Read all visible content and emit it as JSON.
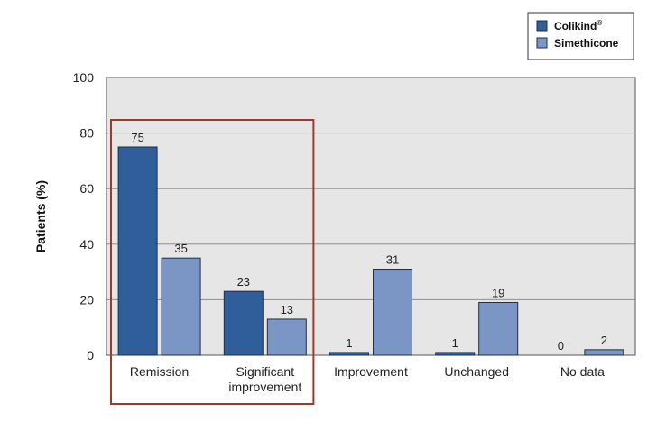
{
  "chart_data": {
    "type": "bar",
    "title": "",
    "xlabel": "",
    "ylabel": "Patients (%)",
    "ylim": [
      0,
      100
    ],
    "yticks": [
      0,
      20,
      40,
      60,
      80,
      100
    ],
    "grid": true,
    "legend_position": "top-right",
    "categories": [
      [
        "Remission"
      ],
      [
        "Significant",
        "improvement"
      ],
      [
        "Improvement"
      ],
      [
        "Unchanged"
      ],
      [
        "No data"
      ]
    ],
    "series": [
      {
        "name": "Colikind",
        "superscript": "®",
        "color": "#2f5e9a",
        "values": [
          75,
          23,
          1,
          1,
          0
        ]
      },
      {
        "name": "Simethicone",
        "color": "#7b96c4",
        "values": [
          35,
          13,
          31,
          19,
          2
        ]
      }
    ],
    "highlight": {
      "from_category": 0,
      "to_category": 1,
      "color": "#9a3b2f"
    }
  }
}
